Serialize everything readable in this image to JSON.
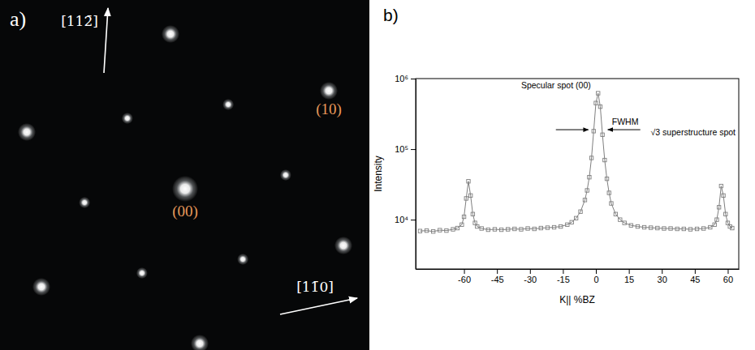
{
  "diffraction_pattern": {
    "panel_label": "a)",
    "spots": [
      {
        "h": 0,
        "k": 0,
        "label": "(00)"
      },
      {
        "h": 1,
        "k": 0,
        "label": "(10)"
      },
      {
        "h": 0,
        "k": 1
      },
      {
        "h": -1,
        "k": 0
      },
      {
        "h": 0,
        "k": -1
      },
      {
        "h": 1,
        "k": -1
      },
      {
        "h": -1,
        "k": 1
      },
      {
        "h": 0.333,
        "k": 0.333
      },
      {
        "h": -0.333,
        "k": -0.333
      },
      {
        "h": 0.667,
        "k": -0.333
      },
      {
        "h": -0.667,
        "k": 0.333
      },
      {
        "h": 0.333,
        "k": -0.667
      },
      {
        "h": -0.333,
        "k": 0.667
      }
    ],
    "directions": [
      "[112̄]",
      "[11̄0]"
    ]
  },
  "chart_data": {
    "type": "line",
    "title": "b)",
    "xlabel": "K|| %BZ",
    "ylabel": "Intensity",
    "annotations": [
      "Specular spot (00)",
      "FWHM",
      "√3 superstructure spot"
    ],
    "x": [
      -80,
      -77,
      -74,
      -71,
      -68,
      -65,
      -63,
      -61,
      -60,
      -59,
      -58,
      -57,
      -56,
      -55,
      -54,
      -52,
      -49,
      -46,
      -43,
      -40,
      -37,
      -34,
      -31,
      -28,
      -25,
      -22,
      -19,
      -16,
      -13,
      -11,
      -9,
      -7,
      -5,
      -4,
      -3,
      -2,
      -1,
      0,
      1,
      2,
      3,
      4,
      5,
      6,
      7,
      9,
      11,
      13,
      16,
      19,
      22,
      25,
      28,
      31,
      34,
      37,
      40,
      43,
      46,
      49,
      52,
      54,
      55,
      56,
      57,
      58,
      59,
      60,
      61,
      62
    ],
    "series": [
      {
        "color": "#7f7f7f",
        "marker": "square",
        "line_style": "solid",
        "values": [
          6900,
          7000,
          6800,
          7100,
          7000,
          7300,
          7600,
          8500,
          11000,
          20000,
          35000,
          22000,
          12000,
          9000,
          8000,
          7500,
          7200,
          7300,
          7200,
          7300,
          7400,
          7300,
          7500,
          7400,
          7600,
          7700,
          7800,
          8000,
          8500,
          9200,
          10500,
          13000,
          19000,
          26000,
          40000,
          75000,
          180000,
          450000,
          620000,
          400000,
          160000,
          70000,
          38000,
          24000,
          17000,
          12000,
          10000,
          9000,
          8300,
          8000,
          7800,
          7700,
          7600,
          7500,
          7500,
          7400,
          7400,
          7300,
          7400,
          7500,
          7800,
          8500,
          10000,
          15000,
          30000,
          22000,
          12000,
          9000,
          8000,
          7600
        ]
      }
    ],
    "xlim": [
      -82,
      65
    ],
    "xticks": [
      -60,
      -45,
      -30,
      -15,
      0,
      15,
      30,
      45,
      60
    ],
    "ylim": [
      2000,
      1000000
    ],
    "yticks": [
      {
        "value": 10000,
        "label": "10⁴"
      },
      {
        "value": 100000,
        "label": "10⁵"
      },
      {
        "value": 1000000,
        "label": "10⁶"
      }
    ],
    "log": "y"
  }
}
